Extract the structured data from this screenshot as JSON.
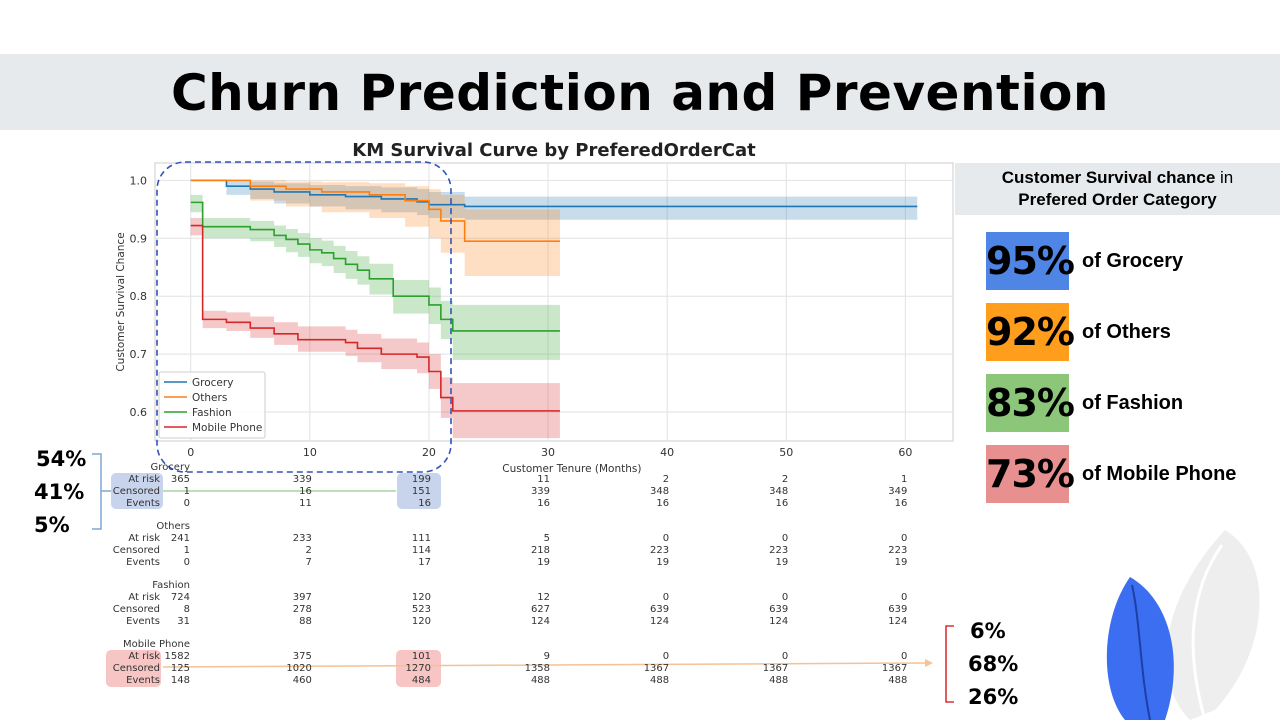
{
  "header": {
    "title": "Churn Prediction and Prevention"
  },
  "chart_data": {
    "type": "line",
    "subtype": "kaplan-meier",
    "title": "KM Survival Curve by PreferedOrderCat",
    "xlabel": "Customer Tenure (Months)",
    "ylabel": "Customer Survival Chance",
    "xlim": [
      -3,
      64
    ],
    "ylim": [
      0.55,
      1.03
    ],
    "xticks": [
      0,
      10,
      20,
      30,
      40,
      50,
      60
    ],
    "yticks": [
      0.6,
      0.7,
      0.8,
      0.9,
      1.0
    ],
    "grid": true,
    "legend_position": "lower-left",
    "series": [
      {
        "name": "Grocery",
        "color": "#1f77b4",
        "steps": [
          [
            0,
            1.0
          ],
          [
            1,
            1.0
          ],
          [
            3,
            0.99
          ],
          [
            5,
            0.985
          ],
          [
            7,
            0.98
          ],
          [
            10,
            0.975
          ],
          [
            13,
            0.972
          ],
          [
            16,
            0.968
          ],
          [
            19,
            0.963
          ],
          [
            20,
            0.958
          ],
          [
            23,
            0.955
          ],
          [
            61,
            0.955
          ]
        ],
        "upper": [
          1.0,
          1.0,
          1.0,
          0.998,
          0.995,
          0.992,
          0.99,
          0.988,
          0.985,
          0.98,
          0.972,
          0.972
        ],
        "lower": [
          1.0,
          1.0,
          0.975,
          0.968,
          0.96,
          0.955,
          0.95,
          0.945,
          0.94,
          0.935,
          0.932,
          0.932
        ]
      },
      {
        "name": "Others",
        "color": "#ff7f0e",
        "steps": [
          [
            0,
            1.0
          ],
          [
            2,
            1.0
          ],
          [
            5,
            0.99
          ],
          [
            8,
            0.985
          ],
          [
            11,
            0.98
          ],
          [
            15,
            0.975
          ],
          [
            18,
            0.965
          ],
          [
            20,
            0.95
          ],
          [
            21,
            0.93
          ],
          [
            23,
            0.895
          ],
          [
            31,
            0.895
          ]
        ],
        "upper": [
          1.0,
          1.0,
          1.0,
          0.998,
          0.997,
          0.995,
          0.99,
          0.985,
          0.975,
          0.95,
          0.95
        ],
        "lower": [
          1.0,
          1.0,
          0.965,
          0.955,
          0.945,
          0.935,
          0.92,
          0.9,
          0.875,
          0.835,
          0.835
        ]
      },
      {
        "name": "Fashion",
        "color": "#2ca02c",
        "steps": [
          [
            0,
            0.962
          ],
          [
            1,
            0.92
          ],
          [
            5,
            0.915
          ],
          [
            7,
            0.905
          ],
          [
            8,
            0.898
          ],
          [
            9,
            0.89
          ],
          [
            10,
            0.88
          ],
          [
            11,
            0.875
          ],
          [
            12,
            0.865
          ],
          [
            13,
            0.855
          ],
          [
            14,
            0.845
          ],
          [
            15,
            0.83
          ],
          [
            17,
            0.8
          ],
          [
            20,
            0.785
          ],
          [
            21,
            0.76
          ],
          [
            22,
            0.74
          ],
          [
            31,
            0.74
          ]
        ],
        "upper": [
          0.975,
          0.935,
          0.93,
          0.922,
          0.916,
          0.909,
          0.9,
          0.896,
          0.887,
          0.878,
          0.869,
          0.856,
          0.828,
          0.815,
          0.792,
          0.785,
          0.785
        ],
        "lower": [
          0.945,
          0.9,
          0.895,
          0.885,
          0.876,
          0.868,
          0.857,
          0.852,
          0.84,
          0.83,
          0.82,
          0.803,
          0.77,
          0.752,
          0.726,
          0.69,
          0.69
        ]
      },
      {
        "name": "Mobile Phone",
        "color": "#d62728",
        "steps": [
          [
            0,
            0.922
          ],
          [
            1,
            0.76
          ],
          [
            3,
            0.755
          ],
          [
            5,
            0.745
          ],
          [
            7,
            0.735
          ],
          [
            9,
            0.725
          ],
          [
            13,
            0.72
          ],
          [
            14,
            0.71
          ],
          [
            16,
            0.7
          ],
          [
            19,
            0.695
          ],
          [
            20,
            0.67
          ],
          [
            21,
            0.625
          ],
          [
            22,
            0.602
          ],
          [
            31,
            0.602
          ]
        ],
        "upper": [
          0.935,
          0.775,
          0.772,
          0.765,
          0.755,
          0.748,
          0.742,
          0.735,
          0.727,
          0.72,
          0.7,
          0.66,
          0.65,
          0.65
        ],
        "lower": [
          0.905,
          0.745,
          0.74,
          0.728,
          0.716,
          0.704,
          0.697,
          0.686,
          0.674,
          0.667,
          0.64,
          0.59,
          0.555,
          0.555
        ]
      }
    ],
    "risk_table": {
      "xticks": [
        0,
        10,
        20,
        30,
        40,
        50,
        60
      ],
      "row_labels": [
        "At risk",
        "Censored",
        "Events"
      ],
      "groups": [
        {
          "name": "Grocery",
          "at_risk": [
            "365",
            "339",
            "199",
            "11",
            "2",
            "2",
            "1"
          ],
          "censored": [
            "1",
            "16",
            "151",
            "339",
            "348",
            "348",
            "349"
          ],
          "events": [
            "0",
            "11",
            "16",
            "16",
            "16",
            "16",
            "16"
          ]
        },
        {
          "name": "Others",
          "at_risk": [
            "241",
            "233",
            "111",
            "5",
            "0",
            "0",
            "0"
          ],
          "censored": [
            "1",
            "2",
            "114",
            "218",
            "223",
            "223",
            "223"
          ],
          "events": [
            "0",
            "7",
            "17",
            "19",
            "19",
            "19",
            "19"
          ]
        },
        {
          "name": "Fashion",
          "at_risk": [
            "724",
            "397",
            "120",
            "12",
            "0",
            "0",
            "0"
          ],
          "censored": [
            "8",
            "278",
            "523",
            "627",
            "639",
            "639",
            "639"
          ],
          "events": [
            "31",
            "88",
            "120",
            "124",
            "124",
            "124",
            "124"
          ]
        },
        {
          "name": "Mobile Phone",
          "at_risk": [
            "1582",
            "375",
            "101",
            "9",
            "0",
            "0",
            "0"
          ],
          "censored": [
            "125",
            "1020",
            "1270",
            "1358",
            "1367",
            "1367",
            "1367"
          ],
          "events": [
            "148",
            "460",
            "484",
            "488",
            "488",
            "488",
            "488"
          ]
        }
      ]
    }
  },
  "annotations": {
    "left_percents": [
      "54%",
      "41%",
      "5%"
    ],
    "right_percents": [
      "6%",
      "68%",
      "26%"
    ]
  },
  "panel": {
    "heading_bold": "Customer Survival chance",
    "heading_rest": " in",
    "heading_line2": "Prefered Order Category",
    "stats": [
      {
        "value": "95%",
        "label": "of Grocery",
        "color": "#4f86e6"
      },
      {
        "value": "92%",
        "label": "of Others",
        "color": "#ff9d1c"
      },
      {
        "value": "83%",
        "label": "of Fashion",
        "color": "#8cc679"
      },
      {
        "value": "73%",
        "label": "of Mobile Phone",
        "color": "#e8908f"
      }
    ]
  }
}
